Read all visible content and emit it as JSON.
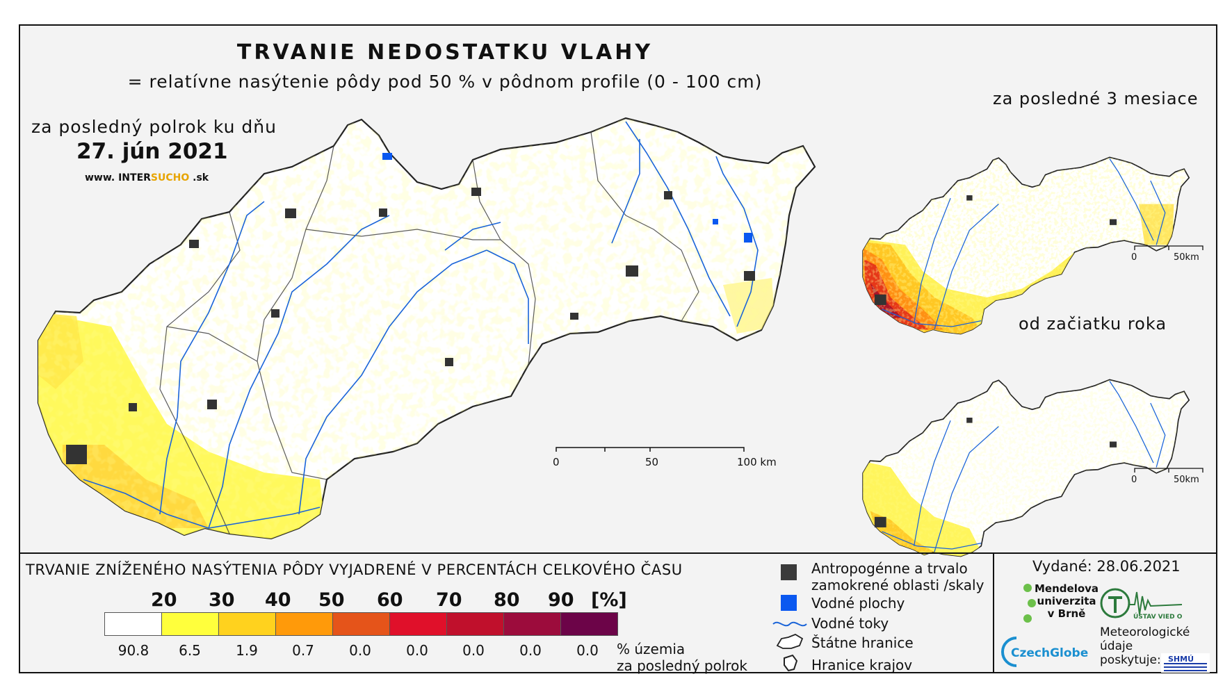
{
  "title": "TRVANIE NEDOSTATKU VLAHY",
  "subtitle": "= relatívne nasýtenie pôdy pod 50 % v pôdnom profile (0 - 100 cm)",
  "main_map": {
    "period_label": "za posledný polrok ku dňu",
    "date": "27. jún 2021",
    "website": {
      "part1": "www. INTER",
      "part2": "SUCHO",
      "part3": " .sk"
    },
    "scale": {
      "ticks": [
        "0",
        "50",
        "100 km"
      ]
    }
  },
  "inset_top": {
    "label": "za posledné 3 mesiace",
    "scale": {
      "ticks": [
        "0",
        "50km"
      ]
    }
  },
  "inset_bottom": {
    "label": "od začiatku roka",
    "scale": {
      "ticks": [
        "0",
        "50km"
      ]
    }
  },
  "legend": {
    "title": "TRVANIE ZNÍŽENÉHO NASÝTENIA PÔDY VYJADRENÉ V PERCENTÁCH CELKOVÉHO ČASU",
    "thresholds": [
      "20",
      "30",
      "40",
      "50",
      "60",
      "70",
      "80",
      "90",
      "[%]"
    ],
    "classes": [
      {
        "color": "#ffffff",
        "value": "90.8"
      },
      {
        "color": "#ffff3c",
        "value": "6.5"
      },
      {
        "color": "#ffd21e",
        "value": "1.9"
      },
      {
        "color": "#ff9a0a",
        "value": "0.7"
      },
      {
        "color": "#e5541a",
        "value": "0.0"
      },
      {
        "color": "#e0102a",
        "value": "0.0"
      },
      {
        "color": "#c0102c",
        "value": "0.0"
      },
      {
        "color": "#9c0c3c",
        "value": "0.0"
      },
      {
        "color": "#6c0448",
        "value": "0.0"
      }
    ],
    "pct_label_line1": "% územia",
    "pct_label_line2": "za posledný polrok",
    "symbols": {
      "anthropogenic_line1": "Antropogénne a trvalo",
      "anthropogenic_line2": "zamokrené oblasti /skaly",
      "water_bodies": "Vodné plochy",
      "rivers": "Vodné toky",
      "state_border": "Štátne hranice",
      "region_border": "Hranice krajov"
    },
    "symbol_colors": {
      "anthropogenic": "#3a3a3a",
      "water": "#0a58f0",
      "river": "#1a64d8"
    }
  },
  "credits": {
    "issued": "Vydané: 28.06.2021",
    "mendel_line1": "Mendelova",
    "mendel_line2": "univerzita",
    "mendel_line3": "v Brně",
    "czechglobe": "CzechGlobe",
    "ustav": "ÚSTAV VIED O ZEMI",
    "meteo_line1": "Meteorologické",
    "meteo_line2": "údaje",
    "meteo_line3": "poskytuje:",
    "shmu": "SHMÚ"
  }
}
